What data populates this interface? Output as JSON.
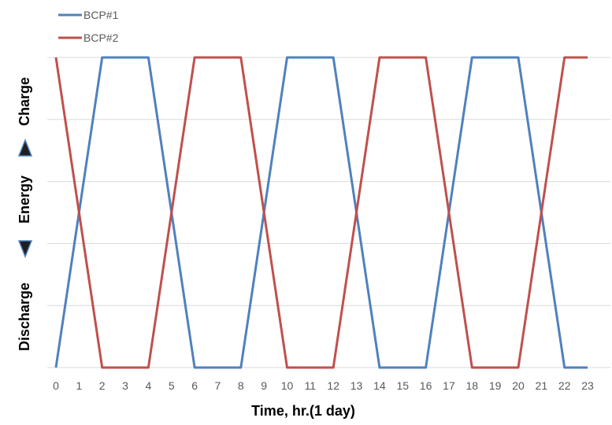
{
  "chart_data": {
    "type": "line",
    "categories": [
      "0",
      "1",
      "2",
      "3",
      "4",
      "5",
      "6",
      "7",
      "8",
      "9",
      "10",
      "11",
      "12",
      "13",
      "14",
      "15",
      "16",
      "17",
      "18",
      "19",
      "20",
      "21",
      "22",
      "23"
    ],
    "x": [
      0,
      1,
      2,
      3,
      4,
      5,
      6,
      7,
      8,
      9,
      10,
      11,
      12,
      13,
      14,
      15,
      16,
      17,
      18,
      19,
      20,
      21,
      22,
      23
    ],
    "series": [
      {
        "name": "BCP#1",
        "color": "#4f81bd",
        "values": [
          0,
          0.5,
          1,
          1,
          1,
          0.5,
          0,
          0,
          0,
          0.5,
          1,
          1,
          1,
          0.5,
          0,
          0,
          0,
          0.5,
          1,
          1,
          1,
          0.5,
          0,
          0
        ]
      },
      {
        "name": "BCP#2",
        "color": "#c0504d",
        "values": [
          1,
          0.5,
          0,
          0,
          0,
          0.5,
          1,
          1,
          1,
          0.5,
          0,
          0,
          0,
          0.5,
          1,
          1,
          1,
          0.5,
          0,
          0,
          0,
          0.5,
          1,
          1
        ]
      }
    ],
    "xlabel": "Time, hr.(1 day)",
    "ylabel": {
      "bottom": "Discharge",
      "middle": "Energy",
      "top": "Charge"
    },
    "ylim": [
      0,
      1
    ],
    "grid": true,
    "legend_position": "top-left",
    "gridline_color": "#d9d9d9",
    "marker_color": "#1f1f1f"
  }
}
